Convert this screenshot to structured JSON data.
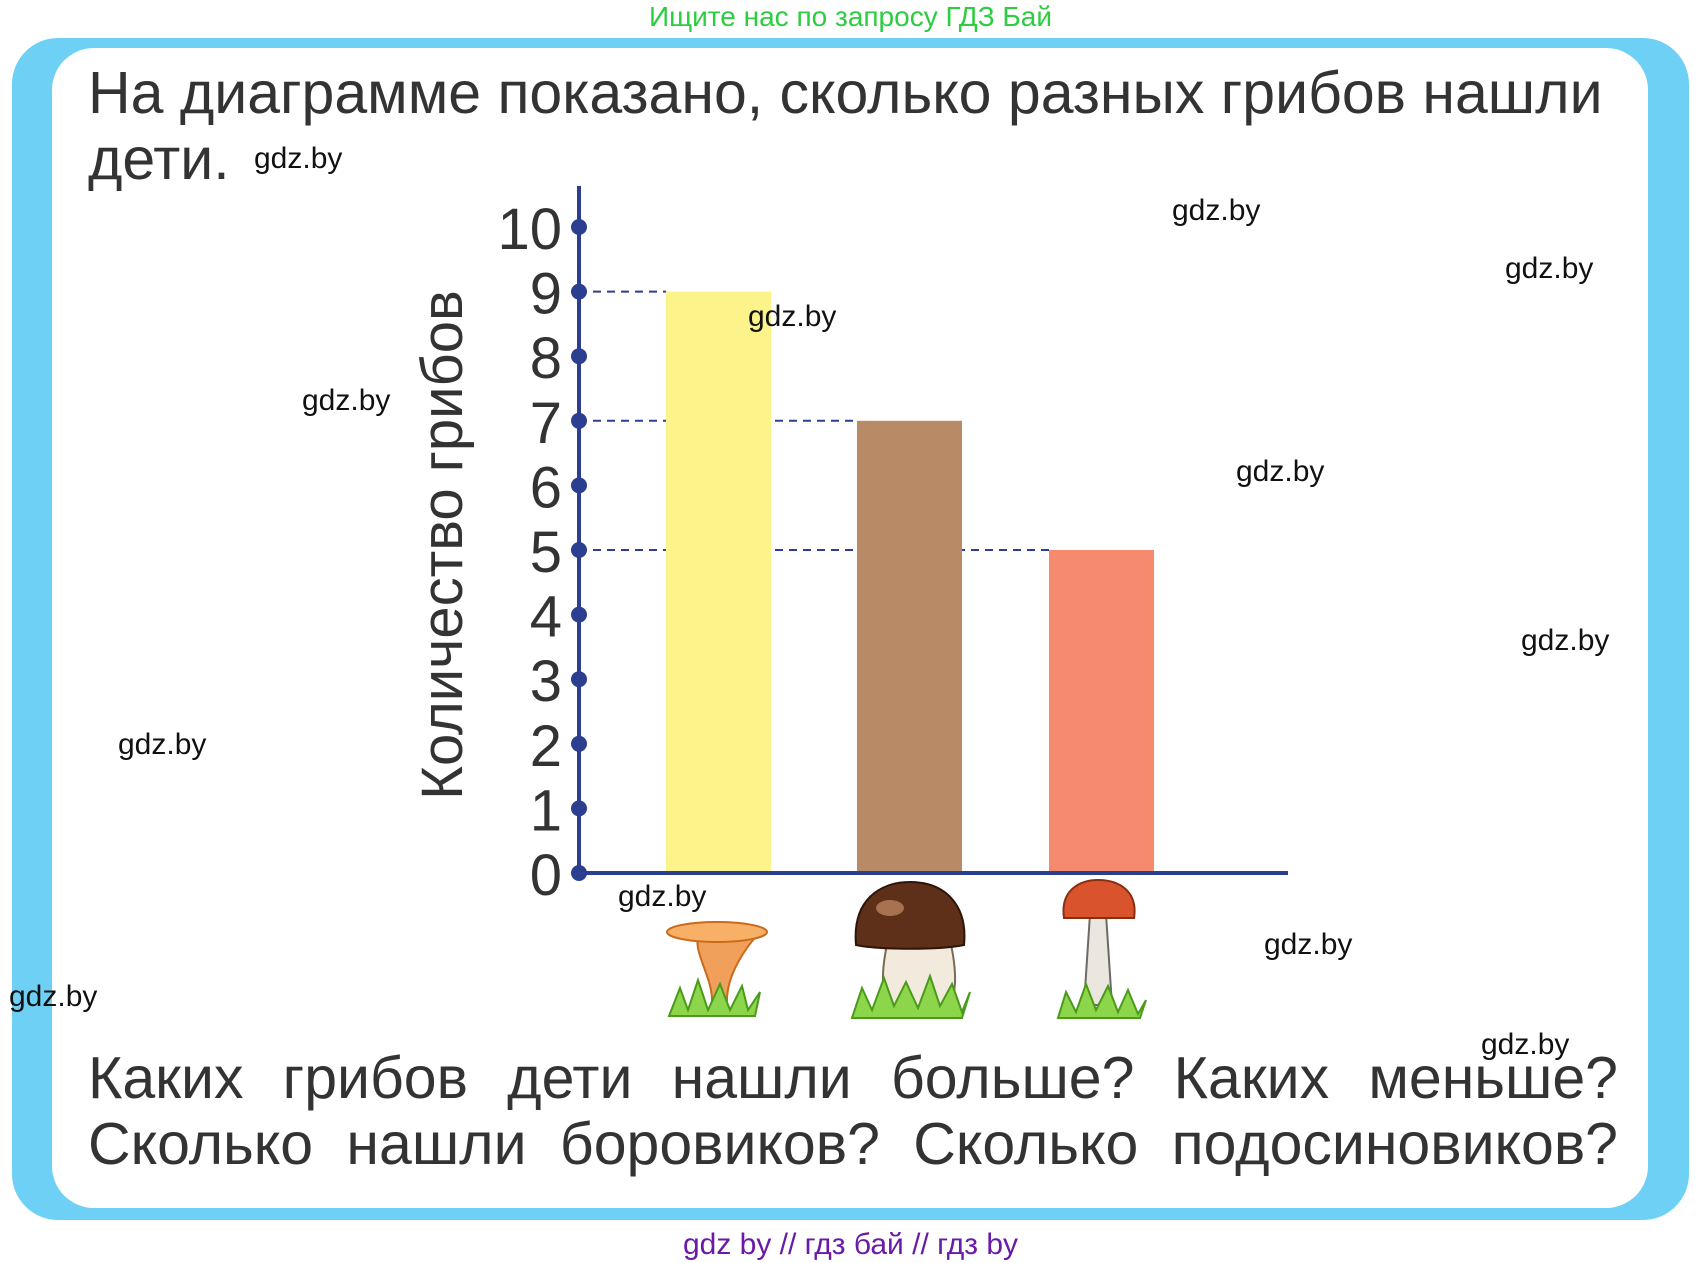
{
  "top_banner": "Ищите нас по запросу ГДЗ Бай",
  "bottom_banner": "gdz by  //  гдз бай  //  гдз by",
  "intro_text": "На диаграмме показано, сколько разных грибов нашли дети.",
  "question_text": "Каких грибов дети нашли больше? Каких меньше? Сколько нашли боровиков? Сколько подосиновиков?",
  "watermark_text": "gdz.by",
  "colors": {
    "frame": "#6fd0f5",
    "axis": "#2c3e8f",
    "bar_chanterelle": "#fcf48a",
    "bar_porcini": "#b88a66",
    "bar_red_cap": "#f58a6e"
  },
  "chart_data": {
    "type": "bar",
    "categories": [
      "chanterelle-icon",
      "porcini-icon",
      "red-cap-icon"
    ],
    "values": [
      9,
      7,
      5
    ],
    "ylabel": "Количество грибов",
    "ylim": [
      0,
      10
    ],
    "yticks": [
      "0",
      "1",
      "2",
      "3",
      "4",
      "5",
      "6",
      "7",
      "8",
      "9",
      "10"
    ],
    "grid": false,
    "reference_lines": [
      9,
      7,
      5
    ]
  }
}
